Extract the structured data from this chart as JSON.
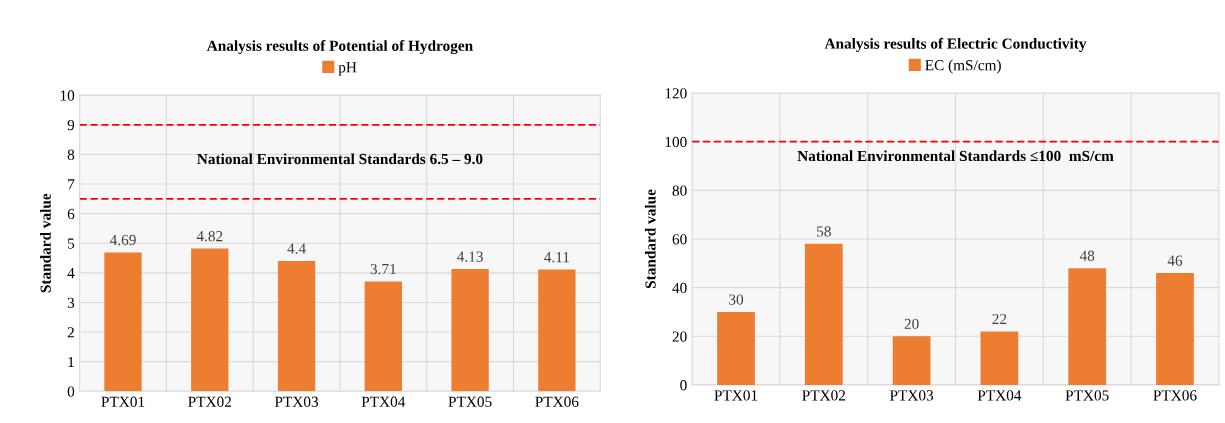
{
  "chart_data": [
    {
      "type": "bar",
      "title": "Analysis results of Potential of Hydrogen",
      "ylabel": "Standard value",
      "categories": [
        "PTX01",
        "PTX02",
        "PTX03",
        "PTX04",
        "PTX05",
        "PTX06"
      ],
      "series": [
        {
          "name": "pH",
          "color": "#ed7d31",
          "values": [
            4.69,
            4.82,
            4.4,
            3.71,
            4.13,
            4.11
          ]
        }
      ],
      "ylim": [
        0,
        10
      ],
      "yticks": [
        0,
        1,
        2,
        3,
        4,
        5,
        6,
        7,
        8,
        9,
        10
      ],
      "grid": true,
      "legend": "top",
      "data_labels": true,
      "ref_lines": [
        {
          "axis": "y",
          "value": 9,
          "color": "#ff0000",
          "line_style": "dashed"
        },
        {
          "axis": "y",
          "value": 6.5,
          "color": "#ff0000",
          "line_style": "dashed"
        }
      ],
      "annotations": [
        "National Environmental Standards 6.5 – 9.0"
      ]
    },
    {
      "type": "bar",
      "title": "Analysis results of Electric Conductivity",
      "ylabel": "Standard value",
      "categories": [
        "PTX01",
        "PTX02",
        "PTX03",
        "PTX04",
        "PTX05",
        "PTX06"
      ],
      "series": [
        {
          "name": "EC (mS/cm)",
          "color": "#ed7d31",
          "values": [
            30,
            58,
            20,
            22,
            48,
            46
          ]
        }
      ],
      "ylim": [
        0,
        120
      ],
      "yticks": [
        0,
        20,
        40,
        60,
        80,
        100,
        120
      ],
      "grid": true,
      "legend": "top",
      "data_labels": true,
      "ref_lines": [
        {
          "axis": "y",
          "value": 100,
          "color": "#ff0000",
          "line_style": "dashed"
        }
      ],
      "annotations": [
        "National Environmental Standards ≤100  mS/cm"
      ]
    }
  ]
}
